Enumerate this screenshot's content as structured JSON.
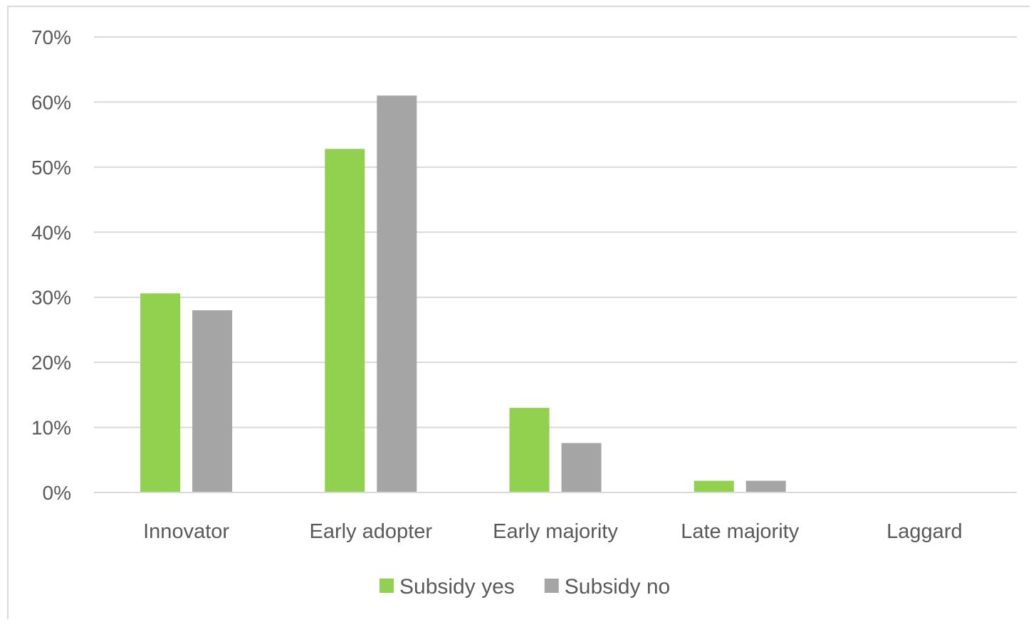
{
  "chart_data": {
    "type": "bar",
    "categories": [
      "Innovator",
      "Early adopter",
      "Early majority",
      "Late majority",
      "Laggard"
    ],
    "series": [
      {
        "name": "Subsidy yes",
        "color": "#92d050",
        "values": [
          30.6,
          52.8,
          13.0,
          1.8,
          0
        ]
      },
      {
        "name": "Subsidy no",
        "color": "#a5a5a5",
        "values": [
          28.0,
          61.0,
          7.6,
          1.8,
          0
        ]
      }
    ],
    "ylim": [
      0,
      70
    ],
    "yticks": [
      0,
      10,
      20,
      30,
      40,
      50,
      60,
      70
    ],
    "ytick_labels": [
      "0%",
      "10%",
      "20%",
      "30%",
      "40%",
      "50%",
      "60%",
      "70%"
    ],
    "grid": true,
    "gridline_color": "#d9d9d9",
    "legend_position": "bottom",
    "title": "",
    "xlabel": "",
    "ylabel": ""
  }
}
